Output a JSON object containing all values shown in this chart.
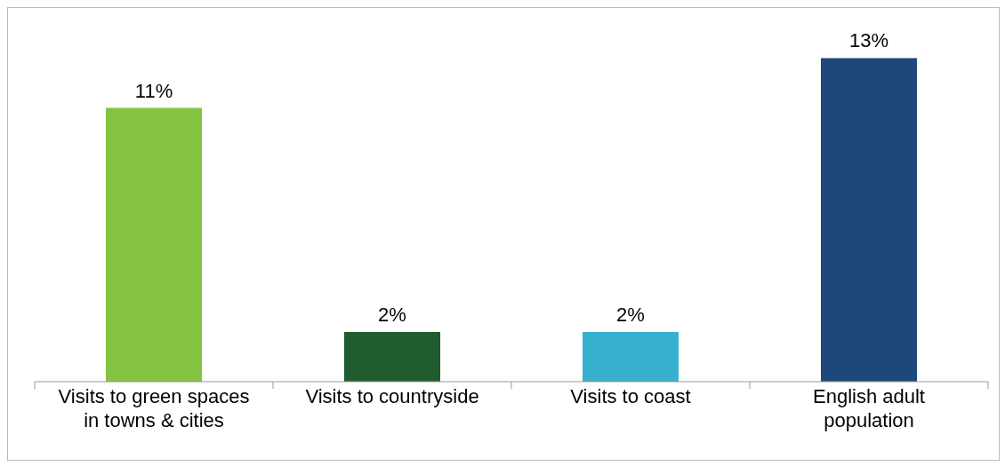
{
  "chart_data": {
    "type": "bar",
    "categories": [
      "Visits to green spaces in towns & cities",
      "Visits to countryside",
      "Visits to coast",
      "English adult population"
    ],
    "values": [
      11,
      2,
      2,
      13
    ],
    "colors": [
      "#84c341",
      "#1f5c2e",
      "#36b0cc",
      "#1f487a"
    ],
    "value_labels": [
      "11%",
      "2%",
      "2%",
      "13%"
    ]
  }
}
